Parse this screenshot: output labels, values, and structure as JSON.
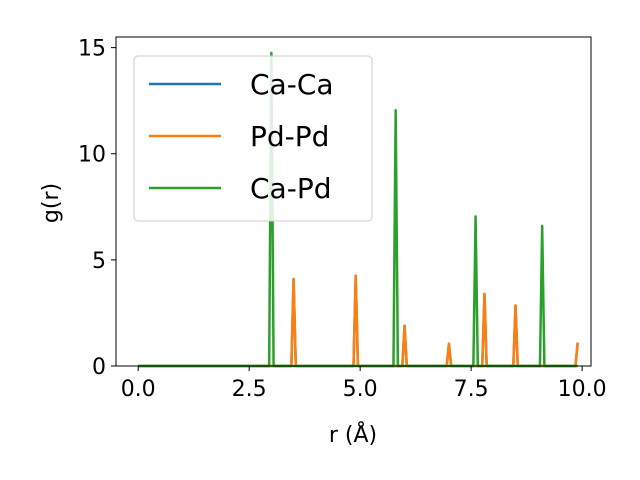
{
  "chart_data": {
    "type": "line",
    "xlabel": "r (Å)",
    "ylabel": "g(r)",
    "xlim": [
      -0.5,
      10.2
    ],
    "ylim": [
      0,
      15.5
    ],
    "xticks": [
      0.0,
      2.5,
      5.0,
      7.5,
      10.0
    ],
    "xtick_labels": [
      "0.0",
      "2.5",
      "5.0",
      "7.5",
      "10.0"
    ],
    "yticks": [
      0,
      5,
      10,
      15
    ],
    "ytick_labels": [
      "0",
      "5",
      "10",
      "15"
    ],
    "grid": false,
    "legend_position": "upper-left",
    "series": [
      {
        "name": "Ca-Ca",
        "color": "#1f77b4",
        "x": [
          0,
          3.45,
          3.5,
          3.55,
          4.85,
          4.9,
          4.95,
          5.95,
          6.0,
          6.05,
          6.95,
          7.0,
          7.05,
          7.75,
          7.8,
          7.85,
          8.45,
          8.5,
          8.55,
          9.85,
          9.9
        ],
        "y": [
          0,
          0,
          4.1,
          0,
          0,
          4.25,
          0,
          0,
          1.9,
          0,
          0,
          1.05,
          0,
          0,
          3.4,
          0,
          0,
          2.85,
          0,
          0,
          1.1
        ]
      },
      {
        "name": "Pd-Pd",
        "color": "#ff7f0e",
        "x": [
          0,
          3.45,
          3.5,
          3.55,
          4.85,
          4.9,
          4.95,
          5.95,
          6.0,
          6.05,
          6.95,
          7.0,
          7.05,
          7.75,
          7.8,
          7.85,
          8.45,
          8.5,
          8.55,
          9.85,
          9.9
        ],
        "y": [
          0,
          0,
          4.1,
          0,
          0,
          4.25,
          0,
          0,
          1.9,
          0,
          0,
          1.05,
          0,
          0,
          3.4,
          0,
          0,
          2.85,
          0,
          0,
          1.1
        ]
      },
      {
        "name": "Ca-Pd",
        "color": "#2ca02c",
        "x": [
          0,
          2.95,
          3.0,
          3.05,
          5.75,
          5.8,
          5.85,
          7.55,
          7.6,
          7.65,
          9.05,
          9.1,
          9.15,
          9.9
        ],
        "y": [
          0,
          0,
          14.75,
          0,
          0,
          12.05,
          0,
          0,
          7.05,
          0,
          0,
          6.6,
          0,
          0
        ]
      }
    ]
  }
}
